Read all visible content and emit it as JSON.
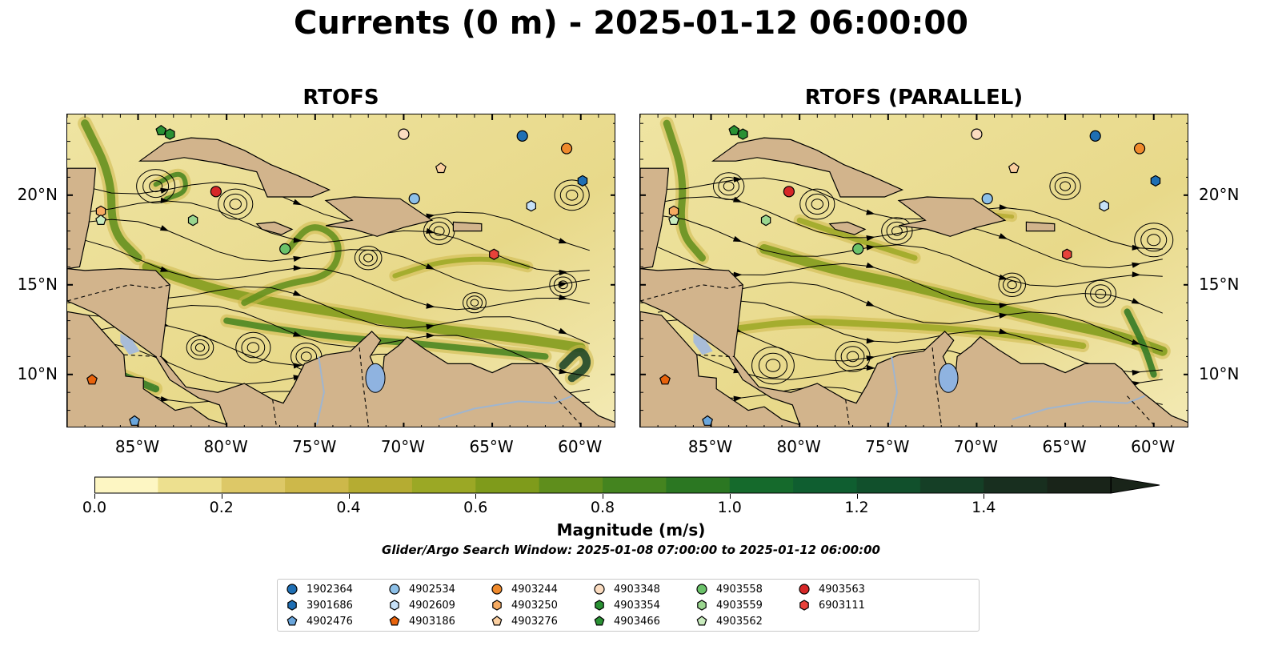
{
  "title": "Currents (0 m) - 2025-01-12 06:00:00",
  "panels": [
    {
      "title": "RTOFS"
    },
    {
      "title": "RTOFS (PARALLEL)"
    }
  ],
  "map": {
    "lon_range": [
      -89,
      -58
    ],
    "lat_range": [
      7,
      24.5
    ],
    "x_ticks": [
      "85°W",
      "80°W",
      "75°W",
      "70°W",
      "65°W",
      "60°W"
    ],
    "y_ticks": [
      "20°N",
      "15°N",
      "10°N"
    ],
    "land_color": "#d2b48c",
    "lake_color": "#8fb3e0"
  },
  "colorbar": {
    "label": "Magnitude (m/s)",
    "ticks": [
      "0.0",
      "0.2",
      "0.4",
      "0.6",
      "0.8",
      "1.0",
      "1.2",
      "1.4"
    ],
    "min": 0.0,
    "max": 1.6,
    "extend": "max",
    "colors": [
      "#fdf6c3",
      "#ede08f",
      "#ddc867",
      "#cdb84a",
      "#b5ac32",
      "#9ba825",
      "#7f9b1b",
      "#5f8e1c",
      "#44841f",
      "#2b7722",
      "#156a2c",
      "#0f5e30",
      "#11502c",
      "#153f26",
      "#182f1f",
      "#192419"
    ]
  },
  "subtitle": "Glider/Argo Search Window: 2025-01-08 07:00:00 to 2025-01-12 06:00:00",
  "legend": [
    {
      "id": "1902364",
      "marker": "circle",
      "color": "#1f6fb4"
    },
    {
      "id": "3901686",
      "marker": "hexagon",
      "color": "#1f6fb4"
    },
    {
      "id": "4902476",
      "marker": "pentagon",
      "color": "#6aa6dc"
    },
    {
      "id": "4902534",
      "marker": "circle",
      "color": "#8dc0e8"
    },
    {
      "id": "4902609",
      "marker": "hexagon",
      "color": "#c6e0f7"
    },
    {
      "id": "4903186",
      "marker": "pentagon",
      "color": "#e8630c"
    },
    {
      "id": "4903244",
      "marker": "circle",
      "color": "#f08a2c"
    },
    {
      "id": "4903250",
      "marker": "hexagon",
      "color": "#f6ab62"
    },
    {
      "id": "4903276",
      "marker": "pentagon",
      "color": "#fbcfa0"
    },
    {
      "id": "4903348",
      "marker": "circle",
      "color": "#fbdcc0"
    },
    {
      "id": "4903354",
      "marker": "hexagon",
      "color": "#2a9134"
    },
    {
      "id": "4903466",
      "marker": "pentagon",
      "color": "#2a9134"
    },
    {
      "id": "4903558",
      "marker": "circle",
      "color": "#6bc26a"
    },
    {
      "id": "4903559",
      "marker": "hexagon",
      "color": "#9ad68f"
    },
    {
      "id": "4903562",
      "marker": "pentagon",
      "color": "#c9ecbe"
    },
    {
      "id": "4903563",
      "marker": "circle",
      "color": "#d62728"
    },
    {
      "id": "6903111",
      "marker": "hexagon",
      "color": "#e8423a"
    }
  ],
  "floats": [
    {
      "id": "1902364",
      "lon": -63.3,
      "lat": 23.3
    },
    {
      "id": "3901686",
      "lon": -59.9,
      "lat": 20.8
    },
    {
      "id": "4902476",
      "lon": -85.2,
      "lat": 7.4
    },
    {
      "id": "4902534",
      "lon": -69.4,
      "lat": 19.8
    },
    {
      "id": "4902609",
      "lon": -62.8,
      "lat": 19.4
    },
    {
      "id": "4903186",
      "lon": -87.6,
      "lat": 9.7
    },
    {
      "id": "4903244",
      "lon": -60.8,
      "lat": 22.6
    },
    {
      "id": "4903250",
      "lon": -87.1,
      "lat": 19.1
    },
    {
      "id": "4903276",
      "lon": -67.9,
      "lat": 21.5
    },
    {
      "id": "4903348",
      "lon": -70.0,
      "lat": 23.4
    },
    {
      "id": "4903354",
      "lon": -83.2,
      "lat": 23.4
    },
    {
      "id": "4903466",
      "lon": -83.7,
      "lat": 23.6
    },
    {
      "id": "4903558",
      "lon": -76.7,
      "lat": 17.0
    },
    {
      "id": "4903559",
      "lon": -81.9,
      "lat": 18.6
    },
    {
      "id": "4903562",
      "lon": -87.1,
      "lat": 18.6
    },
    {
      "id": "4903563",
      "lon": -80.6,
      "lat": 20.2
    },
    {
      "id": "6903111",
      "lon": -64.9,
      "lat": 16.7
    }
  ]
}
